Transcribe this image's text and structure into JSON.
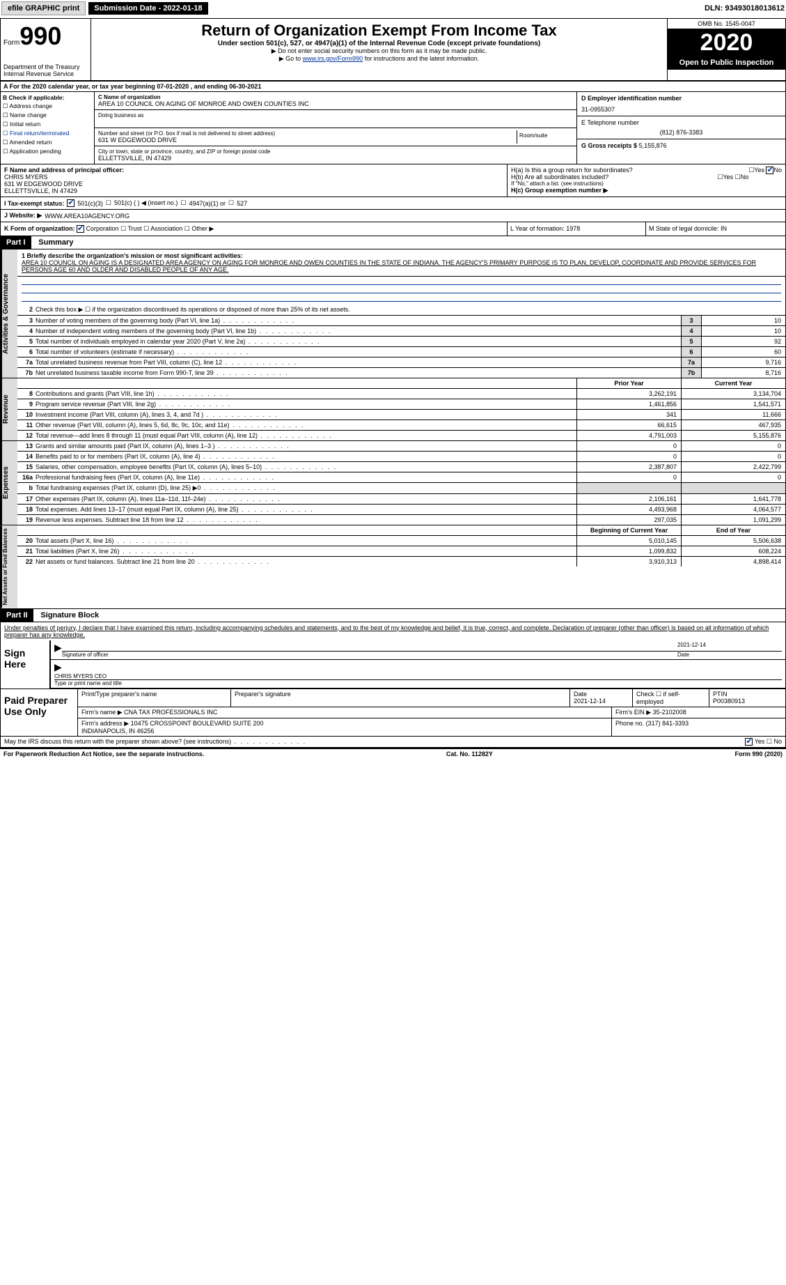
{
  "topbar": {
    "efile": "efile GRAPHIC print",
    "submission_label": "Submission Date - 2022-01-18",
    "dln_label": "DLN: 93493018013612"
  },
  "header": {
    "form_label": "Form",
    "form_number": "990",
    "dept": "Department of the Treasury",
    "irs": "Internal Revenue Service",
    "title": "Return of Organization Exempt From Income Tax",
    "sub": "Under section 501(c), 527, or 4947(a)(1) of the Internal Revenue Code (except private foundations)",
    "note1": "▶ Do not enter social security numbers on this form as it may be made public.",
    "note2_pre": "▶ Go to ",
    "note2_link": "www.irs.gov/Form990",
    "note2_post": " for instructions and the latest information.",
    "omb": "OMB No. 1545-0047",
    "year": "2020",
    "open": "Open to Public Inspection"
  },
  "row_a": "A For the 2020 calendar year, or tax year beginning 07-01-2020    , and ending 06-30-2021",
  "section_b": {
    "title": "B Check if applicable:",
    "items": [
      "Address change",
      "Name change",
      "Initial return",
      "Final return/terminated",
      "Amended return",
      "Application pending"
    ]
  },
  "section_c": {
    "name_label": "C Name of organization",
    "name": "AREA 10 COUNCIL ON AGING OF MONROE AND OWEN COUNTIES INC",
    "dba_label": "Doing business as",
    "addr_label": "Number and street (or P.O. box if mail is not delivered to street address)",
    "room_label": "Room/suite",
    "addr": "631 W EDGEWOOD DRIVE",
    "city_label": "City or town, state or province, country, and ZIP or foreign postal code",
    "city": "ELLETTSVILLE, IN  47429"
  },
  "section_d": {
    "ein_label": "D Employer identification number",
    "ein": "31-0955307",
    "phone_label": "E Telephone number",
    "phone": "(812) 876-3383",
    "gross_label": "G Gross receipts $",
    "gross": "5,155,876"
  },
  "section_f": {
    "label": "F  Name and address of principal officer:",
    "name": "CHRIS MYERS",
    "addr1": "631 W EDGEWOOD DRIVE",
    "addr2": "ELLETTSVILLE, IN  47429"
  },
  "section_h": {
    "ha": "H(a)  Is this a group return for subordinates?",
    "hb": "H(b)  Are all subordinates included?",
    "hb_note": "If \"No,\" attach a list. (see instructions)",
    "hc": "H(c)  Group exemption number ▶"
  },
  "section_i": {
    "label": "I  Tax-exempt status:",
    "opts": [
      "501(c)(3)",
      "501(c) (  ) ◀ (insert no.)",
      "4947(a)(1) or",
      "527"
    ]
  },
  "section_j": {
    "label": "J  Website: ▶",
    "value": "WWW.AREA10AGENCY.ORG"
  },
  "section_k": {
    "label": "K Form of organization:",
    "opts": [
      "Corporation",
      "Trust",
      "Association",
      "Other ▶"
    ],
    "l": "L Year of formation: 1978",
    "m": "M State of legal domicile: IN"
  },
  "part1": {
    "header": "Part I",
    "title": "Summary",
    "mission_label": "1  Briefly describe the organization's mission or most significant activities:",
    "mission": "AREA 10 COUNCIL ON AGING IS A DESIGNATED AREA AGENCY ON AGING FOR MONROE AND OWEN COUNTIES IN THE STATE OF INDIANA. THE AGENCY'S PRIMARY PURPOSE IS TO PLAN, DEVELOP, COORDINATE AND PROVIDE SERVICES FOR PERSONS AGE 60 AND OLDER AND DISABLED PEOPLE OF ANY AGE.",
    "side_gov": "Activities & Governance",
    "side_rev": "Revenue",
    "side_exp": "Expenses",
    "side_net": "Net Assets or Fund Balances",
    "line2": "Check this box ▶ ☐  if the organization discontinued its operations or disposed of more than 25% of its net assets.",
    "gov_rows": [
      {
        "n": "3",
        "desc": "Number of voting members of the governing body (Part VI, line 1a)",
        "val": "10"
      },
      {
        "n": "4",
        "desc": "Number of independent voting members of the governing body (Part VI, line 1b)",
        "val": "10"
      },
      {
        "n": "5",
        "desc": "Total number of individuals employed in calendar year 2020 (Part V, line 2a)",
        "val": "92"
      },
      {
        "n": "6",
        "desc": "Total number of volunteers (estimate if necessary)",
        "val": "60"
      },
      {
        "n": "7a",
        "desc": "Total unrelated business revenue from Part VIII, column (C), line 12",
        "val": "9,716"
      },
      {
        "n": "7b",
        "desc": "Net unrelated business taxable income from Form 990-T, line 39",
        "val": "8,716"
      }
    ],
    "col_prior": "Prior Year",
    "col_current": "Current Year",
    "rev_rows": [
      {
        "n": "8",
        "desc": "Contributions and grants (Part VIII, line 1h)",
        "c1": "3,262,191",
        "c2": "3,134,704"
      },
      {
        "n": "9",
        "desc": "Program service revenue (Part VIII, line 2g)",
        "c1": "1,461,856",
        "c2": "1,541,571"
      },
      {
        "n": "10",
        "desc": "Investment income (Part VIII, column (A), lines 3, 4, and 7d )",
        "c1": "341",
        "c2": "11,666"
      },
      {
        "n": "11",
        "desc": "Other revenue (Part VIII, column (A), lines 5, 6d, 8c, 9c, 10c, and 11e)",
        "c1": "66,615",
        "c2": "467,935"
      },
      {
        "n": "12",
        "desc": "Total revenue—add lines 8 through 11 (must equal Part VIII, column (A), line 12)",
        "c1": "4,791,003",
        "c2": "5,155,876"
      }
    ],
    "exp_rows": [
      {
        "n": "13",
        "desc": "Grants and similar amounts paid (Part IX, column (A), lines 1–3 )",
        "c1": "0",
        "c2": "0"
      },
      {
        "n": "14",
        "desc": "Benefits paid to or for members (Part IX, column (A), line 4)",
        "c1": "0",
        "c2": "0"
      },
      {
        "n": "15",
        "desc": "Salaries, other compensation, employee benefits (Part IX, column (A), lines 5–10)",
        "c1": "2,387,807",
        "c2": "2,422,799"
      },
      {
        "n": "16a",
        "desc": "Professional fundraising fees (Part IX, column (A), line 11e)",
        "c1": "0",
        "c2": "0"
      },
      {
        "n": "b",
        "desc": "Total fundraising expenses (Part IX, column (D), line 25) ▶0",
        "c1": "",
        "c2": ""
      },
      {
        "n": "17",
        "desc": "Other expenses (Part IX, column (A), lines 11a–11d, 11f–24e)",
        "c1": "2,106,161",
        "c2": "1,641,778"
      },
      {
        "n": "18",
        "desc": "Total expenses. Add lines 13–17 (must equal Part IX, column (A), line 25)",
        "c1": "4,493,968",
        "c2": "4,064,577"
      },
      {
        "n": "19",
        "desc": "Revenue less expenses. Subtract line 18 from line 12",
        "c1": "297,035",
        "c2": "1,091,299"
      }
    ],
    "col_begin": "Beginning of Current Year",
    "col_end": "End of Year",
    "net_rows": [
      {
        "n": "20",
        "desc": "Total assets (Part X, line 16)",
        "c1": "5,010,145",
        "c2": "5,506,638"
      },
      {
        "n": "21",
        "desc": "Total liabilities (Part X, line 26)",
        "c1": "1,099,832",
        "c2": "608,224"
      },
      {
        "n": "22",
        "desc": "Net assets or fund balances. Subtract line 21 from line 20",
        "c1": "3,910,313",
        "c2": "4,898,414"
      }
    ]
  },
  "part2": {
    "header": "Part II",
    "title": "Signature Block",
    "decl": "Under penalties of perjury, I declare that I have examined this return, including accompanying schedules and statements, and to the best of my knowledge and belief, it is true, correct, and complete. Declaration of preparer (other than officer) is based on all information of which preparer has any knowledge.",
    "sign_here": "Sign Here",
    "sig_officer": "Signature of officer",
    "sig_date": "2021-12-14",
    "date_label": "Date",
    "officer_name": "CHRIS MYERS CEO",
    "type_label": "Type or print name and title",
    "paid_label": "Paid Preparer Use Only",
    "prep_name_label": "Print/Type preparer's name",
    "prep_sig_label": "Preparer's signature",
    "prep_date_label": "Date",
    "prep_date": "2021-12-14",
    "self_emp": "Check ☐ if self-employed",
    "ptin_label": "PTIN",
    "ptin": "P00380913",
    "firm_name_label": "Firm's name    ▶",
    "firm_name": "CNA TAX PROFESSIONALS INC",
    "firm_ein_label": "Firm's EIN ▶",
    "firm_ein": "35-2102008",
    "firm_addr_label": "Firm's address ▶",
    "firm_addr": "10475 CROSSPOINT BOULEVARD SUITE 200\nINDIANAPOLIS, IN  46256",
    "firm_phone_label": "Phone no.",
    "firm_phone": "(317) 841-3393",
    "discuss": "May the IRS discuss this return with the preparer shown above? (see instructions)",
    "yes": "Yes",
    "no": "No"
  },
  "footer": {
    "pra": "For Paperwork Reduction Act Notice, see the separate instructions.",
    "cat": "Cat. No. 11282Y",
    "form": "Form 990 (2020)"
  }
}
